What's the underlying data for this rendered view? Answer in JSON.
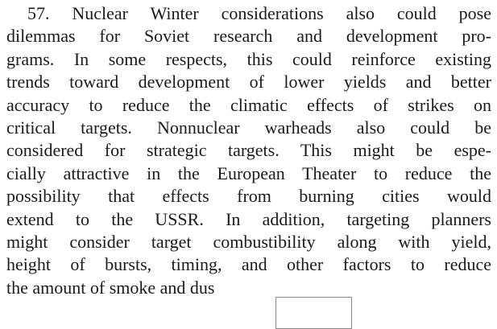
{
  "paragraph": {
    "lines": [
      "57. Nuclear Winter considerations also could pose",
      "dilemmas for Soviet research and development pro-",
      "grams. In some respects, this could reinforce existing",
      "trends toward development of lower yields and better",
      "accuracy to reduce the climatic effects of strikes on",
      "critical targets. Nonnuclear warheads also could be",
      "considered for strategic targets. This might be espe-",
      "cially attractive in the European Theater to reduce the",
      "possibility that effects from burning cities would",
      "extend to the USSR. In addition, targeting planners",
      "might consider target combustibility along with yield,",
      "height of bursts, timing, and other factors to reduce",
      "the amount of smoke and dus"
    ]
  }
}
